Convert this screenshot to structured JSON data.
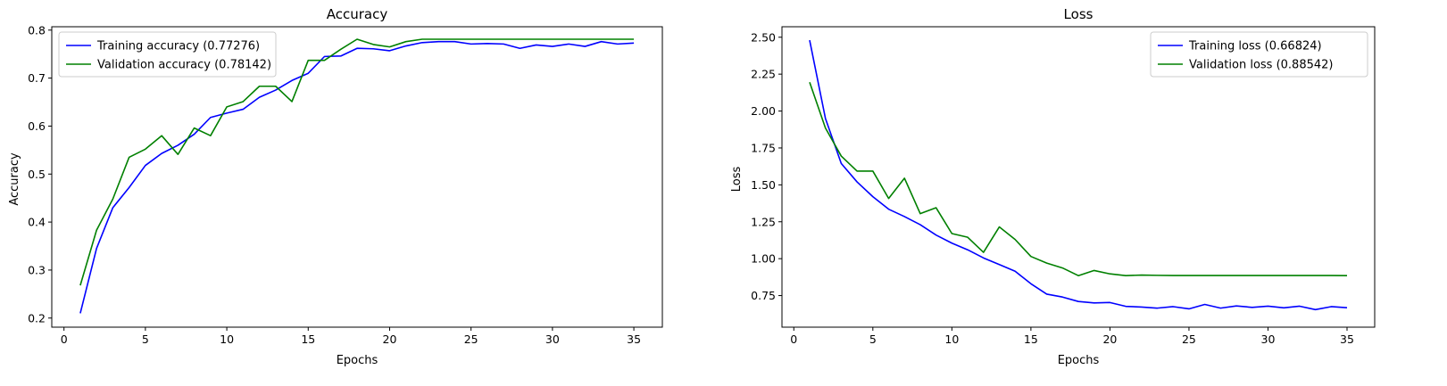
{
  "chart_data": [
    {
      "type": "line",
      "title": "Accuracy",
      "xlabel": "Epochs",
      "ylabel": "Accuracy",
      "xlim": [
        -0.75,
        36.75
      ],
      "ylim": [
        0.181,
        0.807
      ],
      "xticks": [
        0,
        5,
        10,
        15,
        20,
        25,
        30,
        35
      ],
      "yticks": [
        0.2,
        0.3,
        0.4,
        0.5,
        0.6,
        0.7,
        0.8
      ],
      "tick_labels_y": [
        "0.2",
        "0.3",
        "0.4",
        "0.5",
        "0.6",
        "0.7",
        "0.8"
      ],
      "tick_labels_x": [
        "0",
        "5",
        "10",
        "15",
        "20",
        "25",
        "30",
        "35"
      ],
      "grid": false,
      "legend": "upper-left",
      "series": [
        {
          "name": "Training accuracy (0.77276)",
          "color": "#0000ff",
          "x": [
            1,
            2,
            3,
            4,
            5,
            6,
            7,
            8,
            9,
            10,
            11,
            12,
            13,
            14,
            15,
            16,
            17,
            18,
            19,
            20,
            21,
            22,
            23,
            24,
            25,
            26,
            27,
            28,
            29,
            30,
            31,
            32,
            33,
            34,
            35
          ],
          "values": [
            0.21,
            0.345,
            0.43,
            0.472,
            0.518,
            0.543,
            0.56,
            0.583,
            0.618,
            0.627,
            0.635,
            0.66,
            0.675,
            0.695,
            0.71,
            0.745,
            0.746,
            0.762,
            0.761,
            0.757,
            0.767,
            0.774,
            0.776,
            0.776,
            0.771,
            0.772,
            0.771,
            0.762,
            0.769,
            0.766,
            0.771,
            0.766,
            0.776,
            0.771,
            0.773
          ]
        },
        {
          "name": "Validation accuracy (0.78142)",
          "color": "#008000",
          "x": [
            1,
            2,
            3,
            4,
            5,
            6,
            7,
            8,
            9,
            10,
            11,
            12,
            13,
            14,
            15,
            16,
            17,
            18,
            19,
            20,
            21,
            22,
            23,
            24,
            25,
            26,
            27,
            28,
            29,
            30,
            31,
            32,
            33,
            34,
            35
          ],
          "values": [
            0.268,
            0.383,
            0.448,
            0.535,
            0.552,
            0.58,
            0.541,
            0.596,
            0.58,
            0.64,
            0.651,
            0.683,
            0.683,
            0.651,
            0.737,
            0.737,
            0.76,
            0.781,
            0.77,
            0.765,
            0.776,
            0.781,
            0.781,
            0.781,
            0.781,
            0.781,
            0.781,
            0.781,
            0.781,
            0.781,
            0.781,
            0.781,
            0.781,
            0.781,
            0.781
          ]
        }
      ]
    },
    {
      "type": "line",
      "title": "Loss",
      "xlabel": "Epochs",
      "ylabel": "Loss",
      "xlim": [
        -0.75,
        36.75
      ],
      "ylim": [
        0.536,
        2.571
      ],
      "xticks": [
        0,
        5,
        10,
        15,
        20,
        25,
        30,
        35
      ],
      "yticks": [
        0.75,
        1.0,
        1.25,
        1.5,
        1.75,
        2.0,
        2.25,
        2.5
      ],
      "tick_labels_y": [
        "0.75",
        "1.00",
        "1.25",
        "1.50",
        "1.75",
        "2.00",
        "2.25",
        "2.50"
      ],
      "tick_labels_x": [
        "0",
        "5",
        "10",
        "15",
        "20",
        "25",
        "30",
        "35"
      ],
      "grid": false,
      "legend": "upper-right",
      "series": [
        {
          "name": "Training loss (0.66824)",
          "color": "#0000ff",
          "x": [
            1,
            2,
            3,
            4,
            5,
            6,
            7,
            8,
            9,
            10,
            11,
            12,
            13,
            14,
            15,
            16,
            17,
            18,
            19,
            20,
            21,
            22,
            23,
            24,
            25,
            26,
            27,
            28,
            29,
            30,
            31,
            32,
            33,
            34,
            35
          ],
          "values": [
            2.48,
            1.95,
            1.645,
            1.52,
            1.42,
            1.335,
            1.285,
            1.23,
            1.16,
            1.105,
            1.06,
            1.005,
            0.96,
            0.915,
            0.83,
            0.76,
            0.74,
            0.71,
            0.7,
            0.703,
            0.677,
            0.672,
            0.665,
            0.675,
            0.66,
            0.69,
            0.665,
            0.68,
            0.67,
            0.678,
            0.667,
            0.678,
            0.655,
            0.675,
            0.668
          ]
        },
        {
          "name": "Validation loss (0.88542)",
          "color": "#008000",
          "x": [
            1,
            2,
            3,
            4,
            5,
            6,
            7,
            8,
            9,
            10,
            11,
            12,
            13,
            14,
            15,
            16,
            17,
            18,
            19,
            20,
            21,
            22,
            23,
            24,
            25,
            26,
            27,
            28,
            29,
            30,
            31,
            32,
            33,
            34,
            35
          ],
          "values": [
            2.195,
            1.885,
            1.695,
            1.593,
            1.593,
            1.408,
            1.545,
            1.305,
            1.345,
            1.17,
            1.145,
            1.043,
            1.215,
            1.13,
            1.015,
            0.97,
            0.937,
            0.885,
            0.92,
            0.897,
            0.885,
            0.889,
            0.887,
            0.886,
            0.886,
            0.886,
            0.886,
            0.886,
            0.886,
            0.886,
            0.886,
            0.886,
            0.886,
            0.886,
            0.885
          ]
        }
      ]
    }
  ]
}
